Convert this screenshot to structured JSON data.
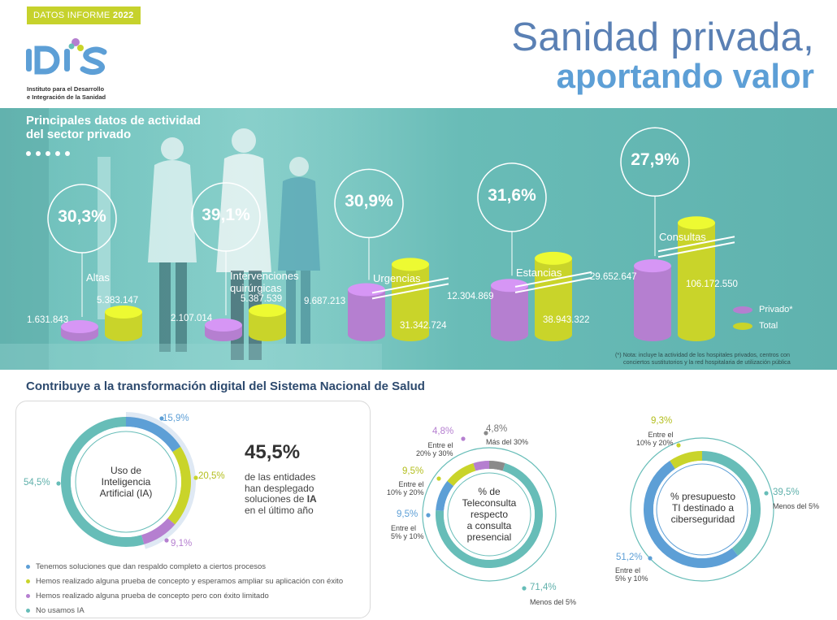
{
  "header": {
    "badge_text": "DATOS INFORME ",
    "badge_year": "2022",
    "logo_text": "IDIS",
    "logo_sub_1": "Instituto para el Desarrollo",
    "logo_sub_2": "e Integración de la Sanidad",
    "title_line1": "Sanidad privada,",
    "title_line2": "aportando valor"
  },
  "hero": {
    "title_1": "Principales datos de actividad",
    "title_2": "del sector privado",
    "legend": {
      "privado": "Privado*",
      "total": "Total"
    },
    "note_1": "(*) Nota: incluye la actividad de los hospitales privados, centros con",
    "note_2": "conciertos sustitutorios y la red hospitalaria de utilización pública"
  },
  "chart_data": {
    "type": "bar",
    "categories": [
      "Altas",
      "Intervenciones quirúrgicas",
      "Urgencias",
      "Estancias",
      "Consultas"
    ],
    "category_lines": [
      [
        "Altas"
      ],
      [
        "Intervenciones",
        "quirúrgicas"
      ],
      [
        "Urgencias"
      ],
      [
        "Estancias"
      ],
      [
        "Consultas"
      ]
    ],
    "series": [
      {
        "name": "Privado*",
        "values": [
          1631843,
          2107014,
          9687213,
          12304869,
          29652647
        ],
        "labels": [
          "1.631.843",
          "2.107.014",
          "9.687.213",
          "12.304.869",
          "29.652.647"
        ]
      },
      {
        "name": "Total",
        "values": [
          5383147,
          5387539,
          31342724,
          38943322,
          106172550
        ],
        "labels": [
          "5.383.147",
          "5.387.539",
          "31.342.724",
          "38.943.322",
          "106.172.550"
        ]
      }
    ],
    "percentages": [
      "30,3%",
      "39,1%",
      "30,9%",
      "31,6%",
      "27,9%"
    ],
    "colors": {
      "privado": "#b57fd0",
      "total": "#c9d42a"
    }
  },
  "digital": {
    "title": "Contribuye a la transformación digital del Sistema Nacional de Salud",
    "dot_colors": [
      "#5d9fd6",
      "#2d4a6e",
      "#c9d42a",
      "#67bdb8",
      "#b57fd0"
    ],
    "ia": {
      "center_1": "Uso de",
      "center_2": "Inteligencia",
      "center_3": "Artificial (IA)",
      "slices": [
        {
          "pct": "15,9%",
          "value": 15.9,
          "color": "#5d9fd6"
        },
        {
          "pct": "20,5%",
          "value": 20.5,
          "color": "#c9d42a"
        },
        {
          "pct": "9,1%",
          "value": 9.1,
          "color": "#b57fd0"
        },
        {
          "pct": "54,5%",
          "value": 54.5,
          "color": "#67bdb8"
        }
      ],
      "highlight": "45,5%",
      "desc_1": "de las entidades",
      "desc_2": "han desplegado",
      "desc_3": "soluciones de ",
      "desc_ia": "IA",
      "desc_4": "en el último año",
      "legend": [
        {
          "text": "Tenemos soluciones que dan respaldo completo a ciertos procesos",
          "color": "#5d9fd6"
        },
        {
          "text": "Hemos realizado alguna prueba de concepto y esperamos ampliar su aplicación con éxito",
          "color": "#c9d42a"
        },
        {
          "text": "Hemos realizado alguna prueba de concepto pero con éxito limitado",
          "color": "#b57fd0"
        },
        {
          "text": "No usamos IA",
          "color": "#67bdb8"
        }
      ]
    },
    "teleconsulta": {
      "center_1": "% de",
      "center_2": "Teleconsulta",
      "center_3": "respecto",
      "center_4": "a consulta",
      "center_5": "presencial",
      "slices": [
        {
          "pct": "71,4%",
          "value": 71.4,
          "label": "Menos del 5%",
          "color": "#67bdb8"
        },
        {
          "pct": "9,5%",
          "value": 9.5,
          "label_1": "Entre el",
          "label_2": "5% y 10%",
          "color": "#5d9fd6"
        },
        {
          "pct": "9,5%",
          "value": 9.5,
          "label_1": "Entre el",
          "label_2": "10% y 20%",
          "color": "#c9d42a"
        },
        {
          "pct": "4,8%",
          "value": 4.8,
          "label_1": "Entre el",
          "label_2": "20% y 30%",
          "color": "#b57fd0"
        },
        {
          "pct": "4,8%",
          "value": 4.8,
          "label": "Más del 30%",
          "color": "#8a8a8a"
        }
      ]
    },
    "ciberseguridad": {
      "center_1": "% presupuesto",
      "center_2": "TI destinado a",
      "center_3": "ciberseguridad",
      "slices": [
        {
          "pct": "39,5%",
          "value": 39.5,
          "label": "Menos del 5%",
          "color": "#67bdb8"
        },
        {
          "pct": "51,2%",
          "value": 51.2,
          "label_1": "Entre el",
          "label_2": "5% y 10%",
          "color": "#5d9fd6"
        },
        {
          "pct": "9,3%",
          "value": 9.3,
          "label_1": "Entre el",
          "label_2": "10% y 20%",
          "color": "#c9d42a"
        }
      ]
    }
  }
}
